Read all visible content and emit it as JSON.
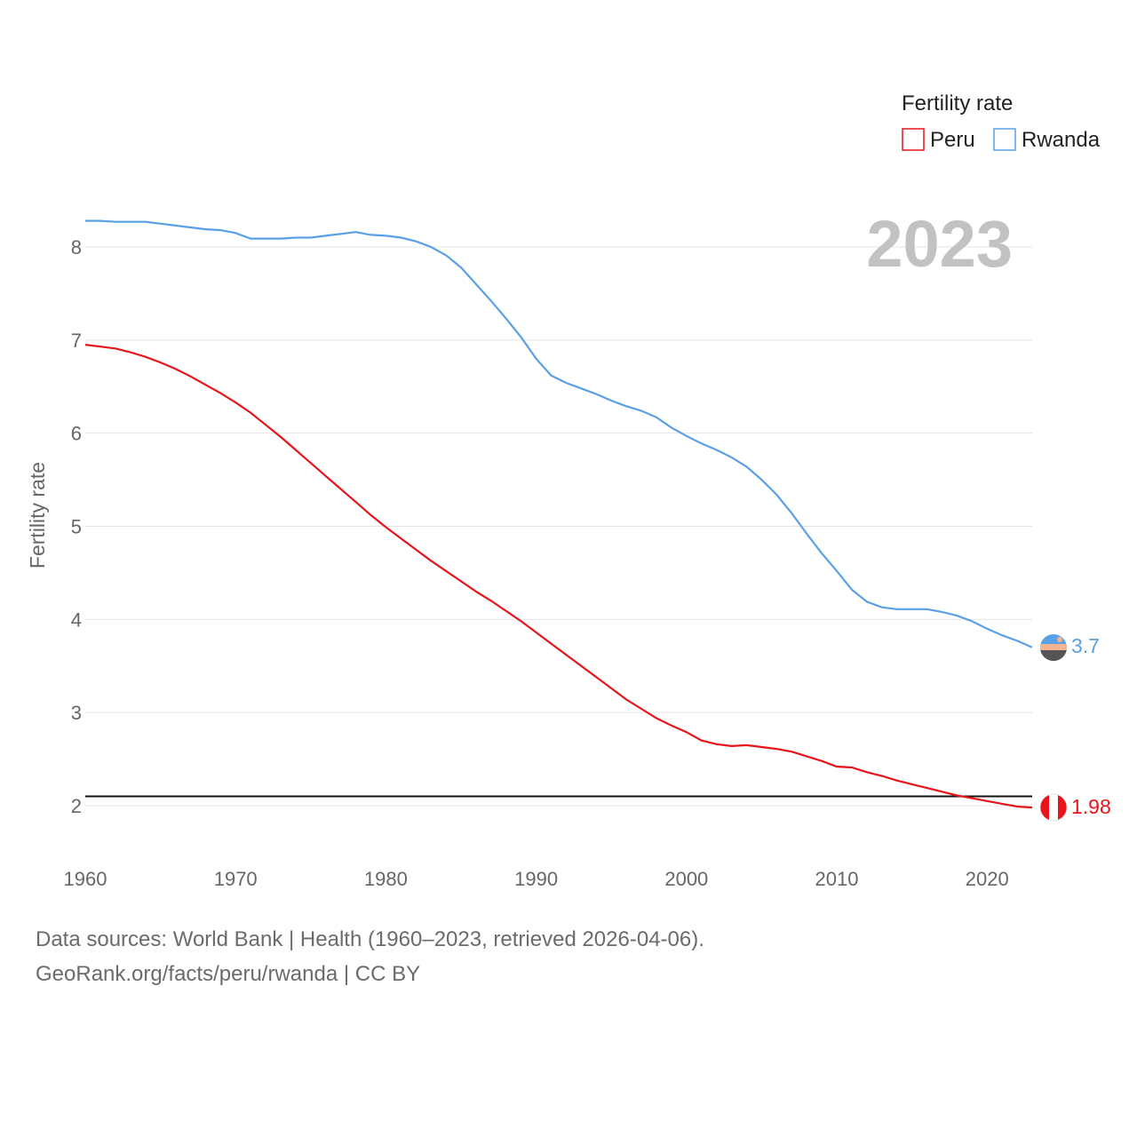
{
  "chart_data": {
    "type": "line",
    "title": "",
    "year_display": "2023",
    "ylabel": "Fertility rate",
    "xlabel": "",
    "xlim": [
      1960,
      2023
    ],
    "ylim": [
      1.5,
      8.5
    ],
    "x_ticks": [
      "1960",
      "1970",
      "1980",
      "1990",
      "2000",
      "2010",
      "2020"
    ],
    "y_ticks": [
      "2",
      "3",
      "4",
      "5",
      "6",
      "7",
      "8"
    ],
    "legend": {
      "title": "Fertility rate",
      "position": "top-right"
    },
    "reference_line": {
      "value": 2.1,
      "color": "#111111"
    },
    "x": [
      1960,
      1961,
      1962,
      1963,
      1964,
      1965,
      1966,
      1967,
      1968,
      1969,
      1970,
      1971,
      1972,
      1973,
      1974,
      1975,
      1976,
      1977,
      1978,
      1979,
      1980,
      1981,
      1982,
      1983,
      1984,
      1985,
      1986,
      1987,
      1988,
      1989,
      1990,
      1991,
      1992,
      1993,
      1994,
      1995,
      1996,
      1997,
      1998,
      1999,
      2000,
      2001,
      2002,
      2003,
      2004,
      2005,
      2006,
      2007,
      2008,
      2009,
      2010,
      2011,
      2012,
      2013,
      2014,
      2015,
      2016,
      2017,
      2018,
      2019,
      2020,
      2021,
      2022,
      2023
    ],
    "series": [
      {
        "name": "Peru",
        "color": "#e8141a",
        "end_label": "1.98",
        "values": [
          6.95,
          6.93,
          6.91,
          6.87,
          6.82,
          6.76,
          6.69,
          6.61,
          6.52,
          6.43,
          6.33,
          6.22,
          6.09,
          5.96,
          5.82,
          5.68,
          5.54,
          5.4,
          5.26,
          5.12,
          4.99,
          4.87,
          4.75,
          4.63,
          4.52,
          4.41,
          4.3,
          4.2,
          4.09,
          3.98,
          3.86,
          3.74,
          3.62,
          3.5,
          3.38,
          3.26,
          3.14,
          3.04,
          2.94,
          2.86,
          2.79,
          2.7,
          2.66,
          2.64,
          2.65,
          2.63,
          2.61,
          2.58,
          2.53,
          2.48,
          2.42,
          2.41,
          2.36,
          2.32,
          2.27,
          2.23,
          2.19,
          2.15,
          2.11,
          2.08,
          2.05,
          2.02,
          1.99,
          1.98
        ]
      },
      {
        "name": "Rwanda",
        "color": "#5aa0e6",
        "end_label": "3.7",
        "values": [
          8.28,
          8.28,
          8.27,
          8.27,
          8.27,
          8.25,
          8.23,
          8.21,
          8.19,
          8.18,
          8.15,
          8.09,
          8.09,
          8.09,
          8.1,
          8.1,
          8.12,
          8.14,
          8.16,
          8.13,
          8.12,
          8.1,
          8.06,
          8.0,
          7.91,
          7.78,
          7.6,
          7.42,
          7.23,
          7.03,
          6.8,
          6.62,
          6.54,
          6.48,
          6.42,
          6.35,
          6.29,
          6.24,
          6.17,
          6.06,
          5.97,
          5.89,
          5.82,
          5.74,
          5.64,
          5.5,
          5.34,
          5.14,
          4.92,
          4.71,
          4.52,
          4.32,
          4.19,
          4.13,
          4.11,
          4.11,
          4.11,
          4.08,
          4.04,
          3.98,
          3.9,
          3.83,
          3.77,
          3.7
        ]
      }
    ]
  },
  "footer": {
    "line1": "Data sources: World Bank | Health (1960–2023, retrieved 2026-04-06).",
    "line2": "GeoRank.org/facts/peru/rwanda | CC BY"
  }
}
